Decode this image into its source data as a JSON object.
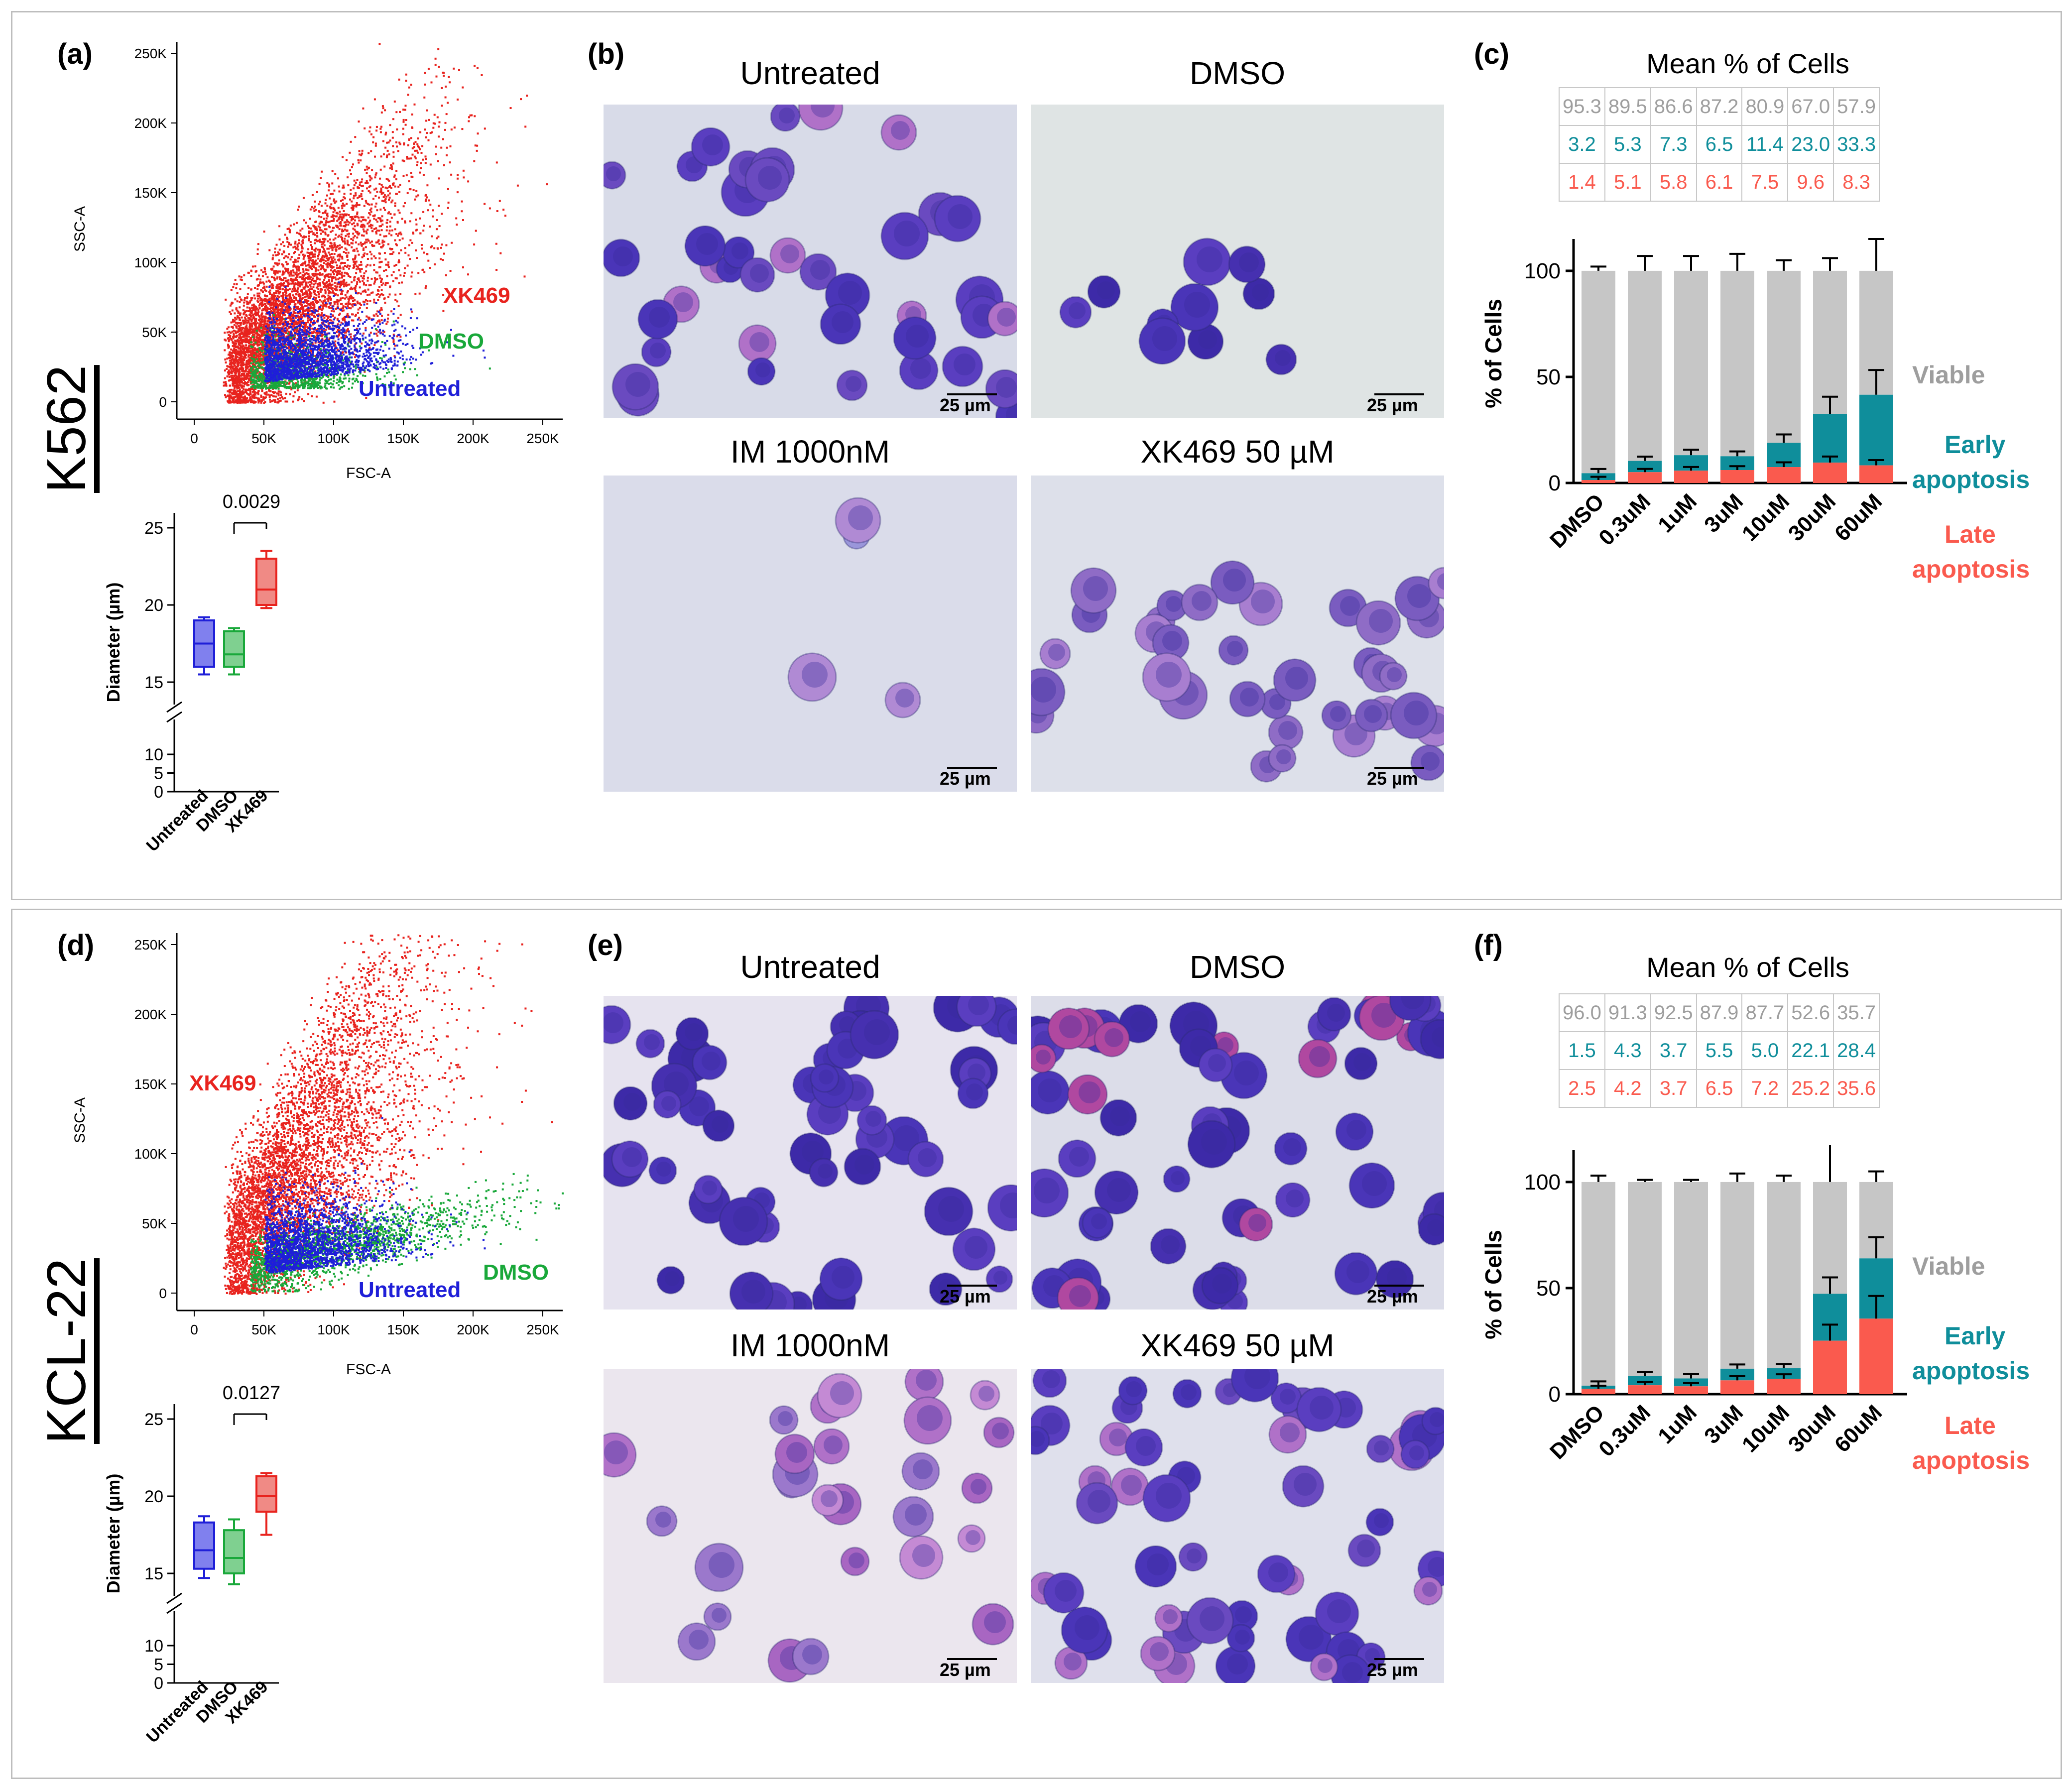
{
  "colors": {
    "untreated": "#1f1fd8",
    "dmso": "#19a83a",
    "xk469": "#e8231e",
    "viable": "#9e9e9e",
    "viable_bar": "#c6c6c6",
    "early": "#0f8e9b",
    "late": "#fa5a4e"
  },
  "panel_labels": {
    "a": "(a)",
    "b": "(b)",
    "c": "(c)",
    "d": "(d)",
    "e": "(e)",
    "f": "(f)"
  },
  "cell_lines": {
    "top": "K562",
    "bottom": "KCL-22"
  },
  "scatter": {
    "xlabel": "FSC-A",
    "ylabel": "SSC-A",
    "ticks": [
      "0",
      "50K",
      "100K",
      "150K",
      "200K",
      "250K"
    ],
    "top_labels": {
      "xk469": "XK469",
      "dmso": "DMSO",
      "untreated": "Untreated"
    },
    "bottom_labels": {
      "xk469": "XK469",
      "dmso": "DMSO",
      "untreated": "Untreated"
    }
  },
  "boxplot": {
    "ylabel": "Diameter (µm)",
    "categories": [
      "Untreated",
      "DMSO",
      "XK469"
    ],
    "yticks_upper": [
      "25",
      "20",
      "15"
    ],
    "yticks_lower": [
      "10",
      "5",
      "0"
    ],
    "top_pvalue": "0.0029",
    "bottom_pvalue": "0.0127"
  },
  "micro": {
    "untreated": "Untreated",
    "dmso": "DMSO",
    "im": "IM 1000nM",
    "xk": "XK469 50 µM",
    "scale": "25 µm"
  },
  "mean_table": {
    "title": "Mean % of Cells",
    "top": {
      "viable": [
        "95.3",
        "89.5",
        "86.6",
        "87.2",
        "80.9",
        "67.0",
        "57.9"
      ],
      "early": [
        "3.2",
        "5.3",
        "7.3",
        "6.5",
        "11.4",
        "23.0",
        "33.3"
      ],
      "late": [
        "1.4",
        "5.1",
        "5.8",
        "6.1",
        "7.5",
        "9.6",
        "8.3"
      ]
    },
    "bottom": {
      "viable": [
        "96.0",
        "91.3",
        "92.5",
        "87.9",
        "87.7",
        "52.6",
        "35.7"
      ],
      "early": [
        "1.5",
        "4.3",
        "3.7",
        "5.5",
        "5.0",
        "22.1",
        "28.4"
      ],
      "late": [
        "2.5",
        "4.2",
        "3.7",
        "6.5",
        "7.2",
        "25.2",
        "35.6"
      ]
    }
  },
  "legend": {
    "viable": "Viable",
    "early1": "Early",
    "early2": "apoptosis",
    "late1": "Late",
    "late2": "apoptosis"
  },
  "chart_data": [
    {
      "type": "bar",
      "title": "(c) K562 apoptosis",
      "ylabel": "% of Cells",
      "ylim": [
        0,
        115
      ],
      "yticks": [
        "0",
        "50",
        "100"
      ],
      "categories": [
        "DMSO",
        "0.3uM",
        "1uM",
        "3uM",
        "10uM",
        "30uM",
        "60uM"
      ],
      "series": [
        {
          "name": "Late apoptosis",
          "values": [
            1.4,
            5.1,
            5.8,
            6.1,
            7.5,
            9.6,
            8.3
          ]
        },
        {
          "name": "Early apoptosis",
          "values": [
            3.2,
            5.3,
            7.3,
            6.5,
            11.4,
            23.0,
            33.3
          ]
        },
        {
          "name": "Viable",
          "values": [
            95.3,
            89.5,
            86.6,
            87.2,
            80.9,
            67.0,
            57.9
          ]
        }
      ],
      "error_top": [
        2,
        7,
        7,
        8,
        5,
        6,
        15
      ]
    },
    {
      "type": "bar",
      "title": "(f) KCL-22 apoptosis",
      "ylabel": "% of Cells",
      "ylim": [
        0,
        115
      ],
      "yticks": [
        "0",
        "50",
        "100"
      ],
      "categories": [
        "DMSO",
        "0.3uM",
        "1uM",
        "3uM",
        "10uM",
        "30uM",
        "60uM"
      ],
      "series": [
        {
          "name": "Late apoptosis",
          "values": [
            2.5,
            4.2,
            3.7,
            6.5,
            7.2,
            25.2,
            35.6
          ]
        },
        {
          "name": "Early apoptosis",
          "values": [
            1.5,
            4.3,
            3.7,
            5.5,
            5.0,
            22.1,
            28.4
          ]
        },
        {
          "name": "Viable",
          "values": [
            96.0,
            91.3,
            92.5,
            87.9,
            87.7,
            52.6,
            35.7
          ]
        }
      ],
      "error_top": [
        3,
        1,
        1,
        4,
        3,
        18,
        5
      ]
    },
    {
      "type": "box",
      "title": "(a) K562 diameter",
      "ylabel": "Diameter (µm)",
      "categories": [
        "Untreated",
        "DMSO",
        "XK469"
      ],
      "min": [
        15.5,
        15.5,
        19.8
      ],
      "q1": [
        16.0,
        16.0,
        20.0
      ],
      "median": [
        17.5,
        16.8,
        21.0
      ],
      "q3": [
        19.0,
        18.3,
        23.0
      ],
      "max": [
        19.2,
        18.5,
        23.5
      ],
      "pvalue": "0.0029"
    },
    {
      "type": "box",
      "title": "(d) KCL-22 diameter",
      "ylabel": "Diameter (µm)",
      "categories": [
        "Untreated",
        "DMSO",
        "XK469"
      ],
      "min": [
        14.7,
        14.3,
        17.5
      ],
      "q1": [
        15.3,
        15.0,
        19.0
      ],
      "median": [
        16.5,
        16.0,
        20.0
      ],
      "q3": [
        18.3,
        17.8,
        21.3
      ],
      "max": [
        18.7,
        18.5,
        21.5
      ],
      "pvalue": "0.0127"
    }
  ]
}
